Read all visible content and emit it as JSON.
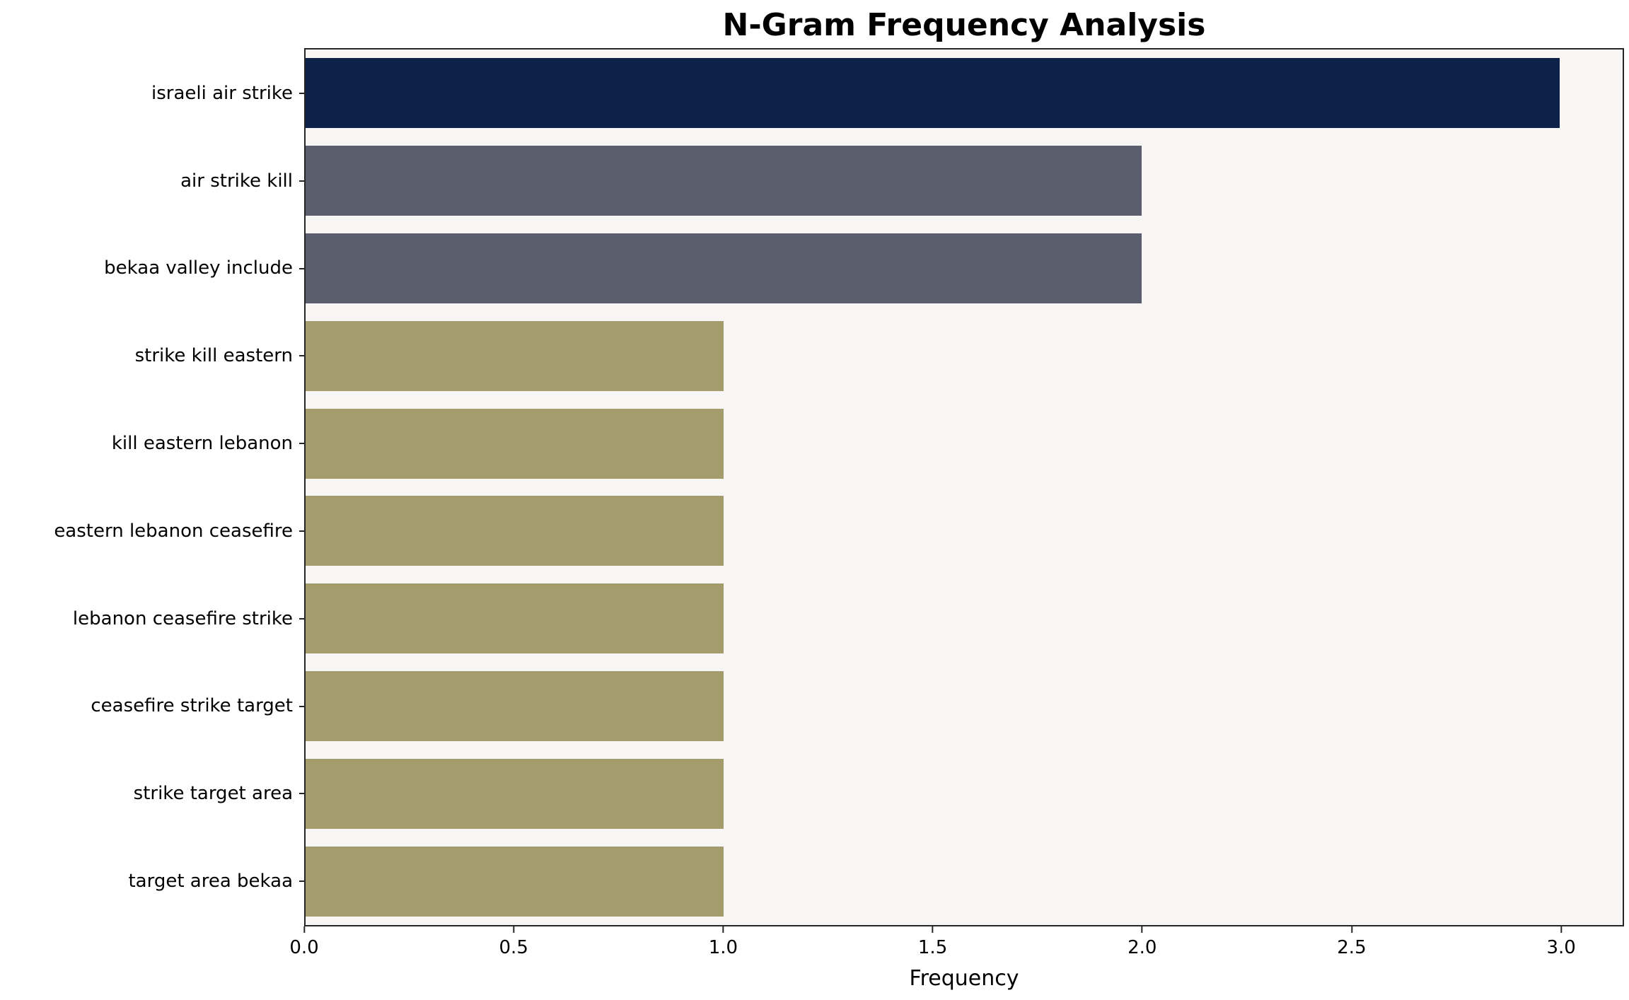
{
  "chart_data": {
    "type": "bar",
    "orientation": "horizontal",
    "title": "N-Gram Frequency Analysis",
    "xlabel": "Frequency",
    "ylabel": "",
    "categories": [
      "israeli air strike",
      "air strike kill",
      "bekaa valley include",
      "strike kill eastern",
      "kill eastern lebanon",
      "eastern lebanon ceasefire",
      "lebanon ceasefire strike",
      "ceasefire strike target",
      "strike target area",
      "target area bekaa"
    ],
    "values": [
      3,
      2,
      2,
      1,
      1,
      1,
      1,
      1,
      1,
      1
    ],
    "bar_colors": [
      "#0d2149",
      "#5a5e6d",
      "#5a5e6d",
      "#a59c6d",
      "#a59c6d",
      "#a59c6d",
      "#a59c6d",
      "#a59c6d",
      "#a59c6d",
      "#a59c6d"
    ],
    "xlim": [
      0,
      3.15
    ],
    "xticks": [
      0,
      0.5,
      1,
      1.5,
      2,
      2.5,
      3
    ],
    "xtick_labels": [
      "0.0",
      "0.5",
      "1.0",
      "1.5",
      "2.0",
      "2.5",
      "3.0"
    ],
    "grid": false,
    "legend": "none",
    "plot_background": "#f7f6f4",
    "axis_color": "#262626"
  }
}
